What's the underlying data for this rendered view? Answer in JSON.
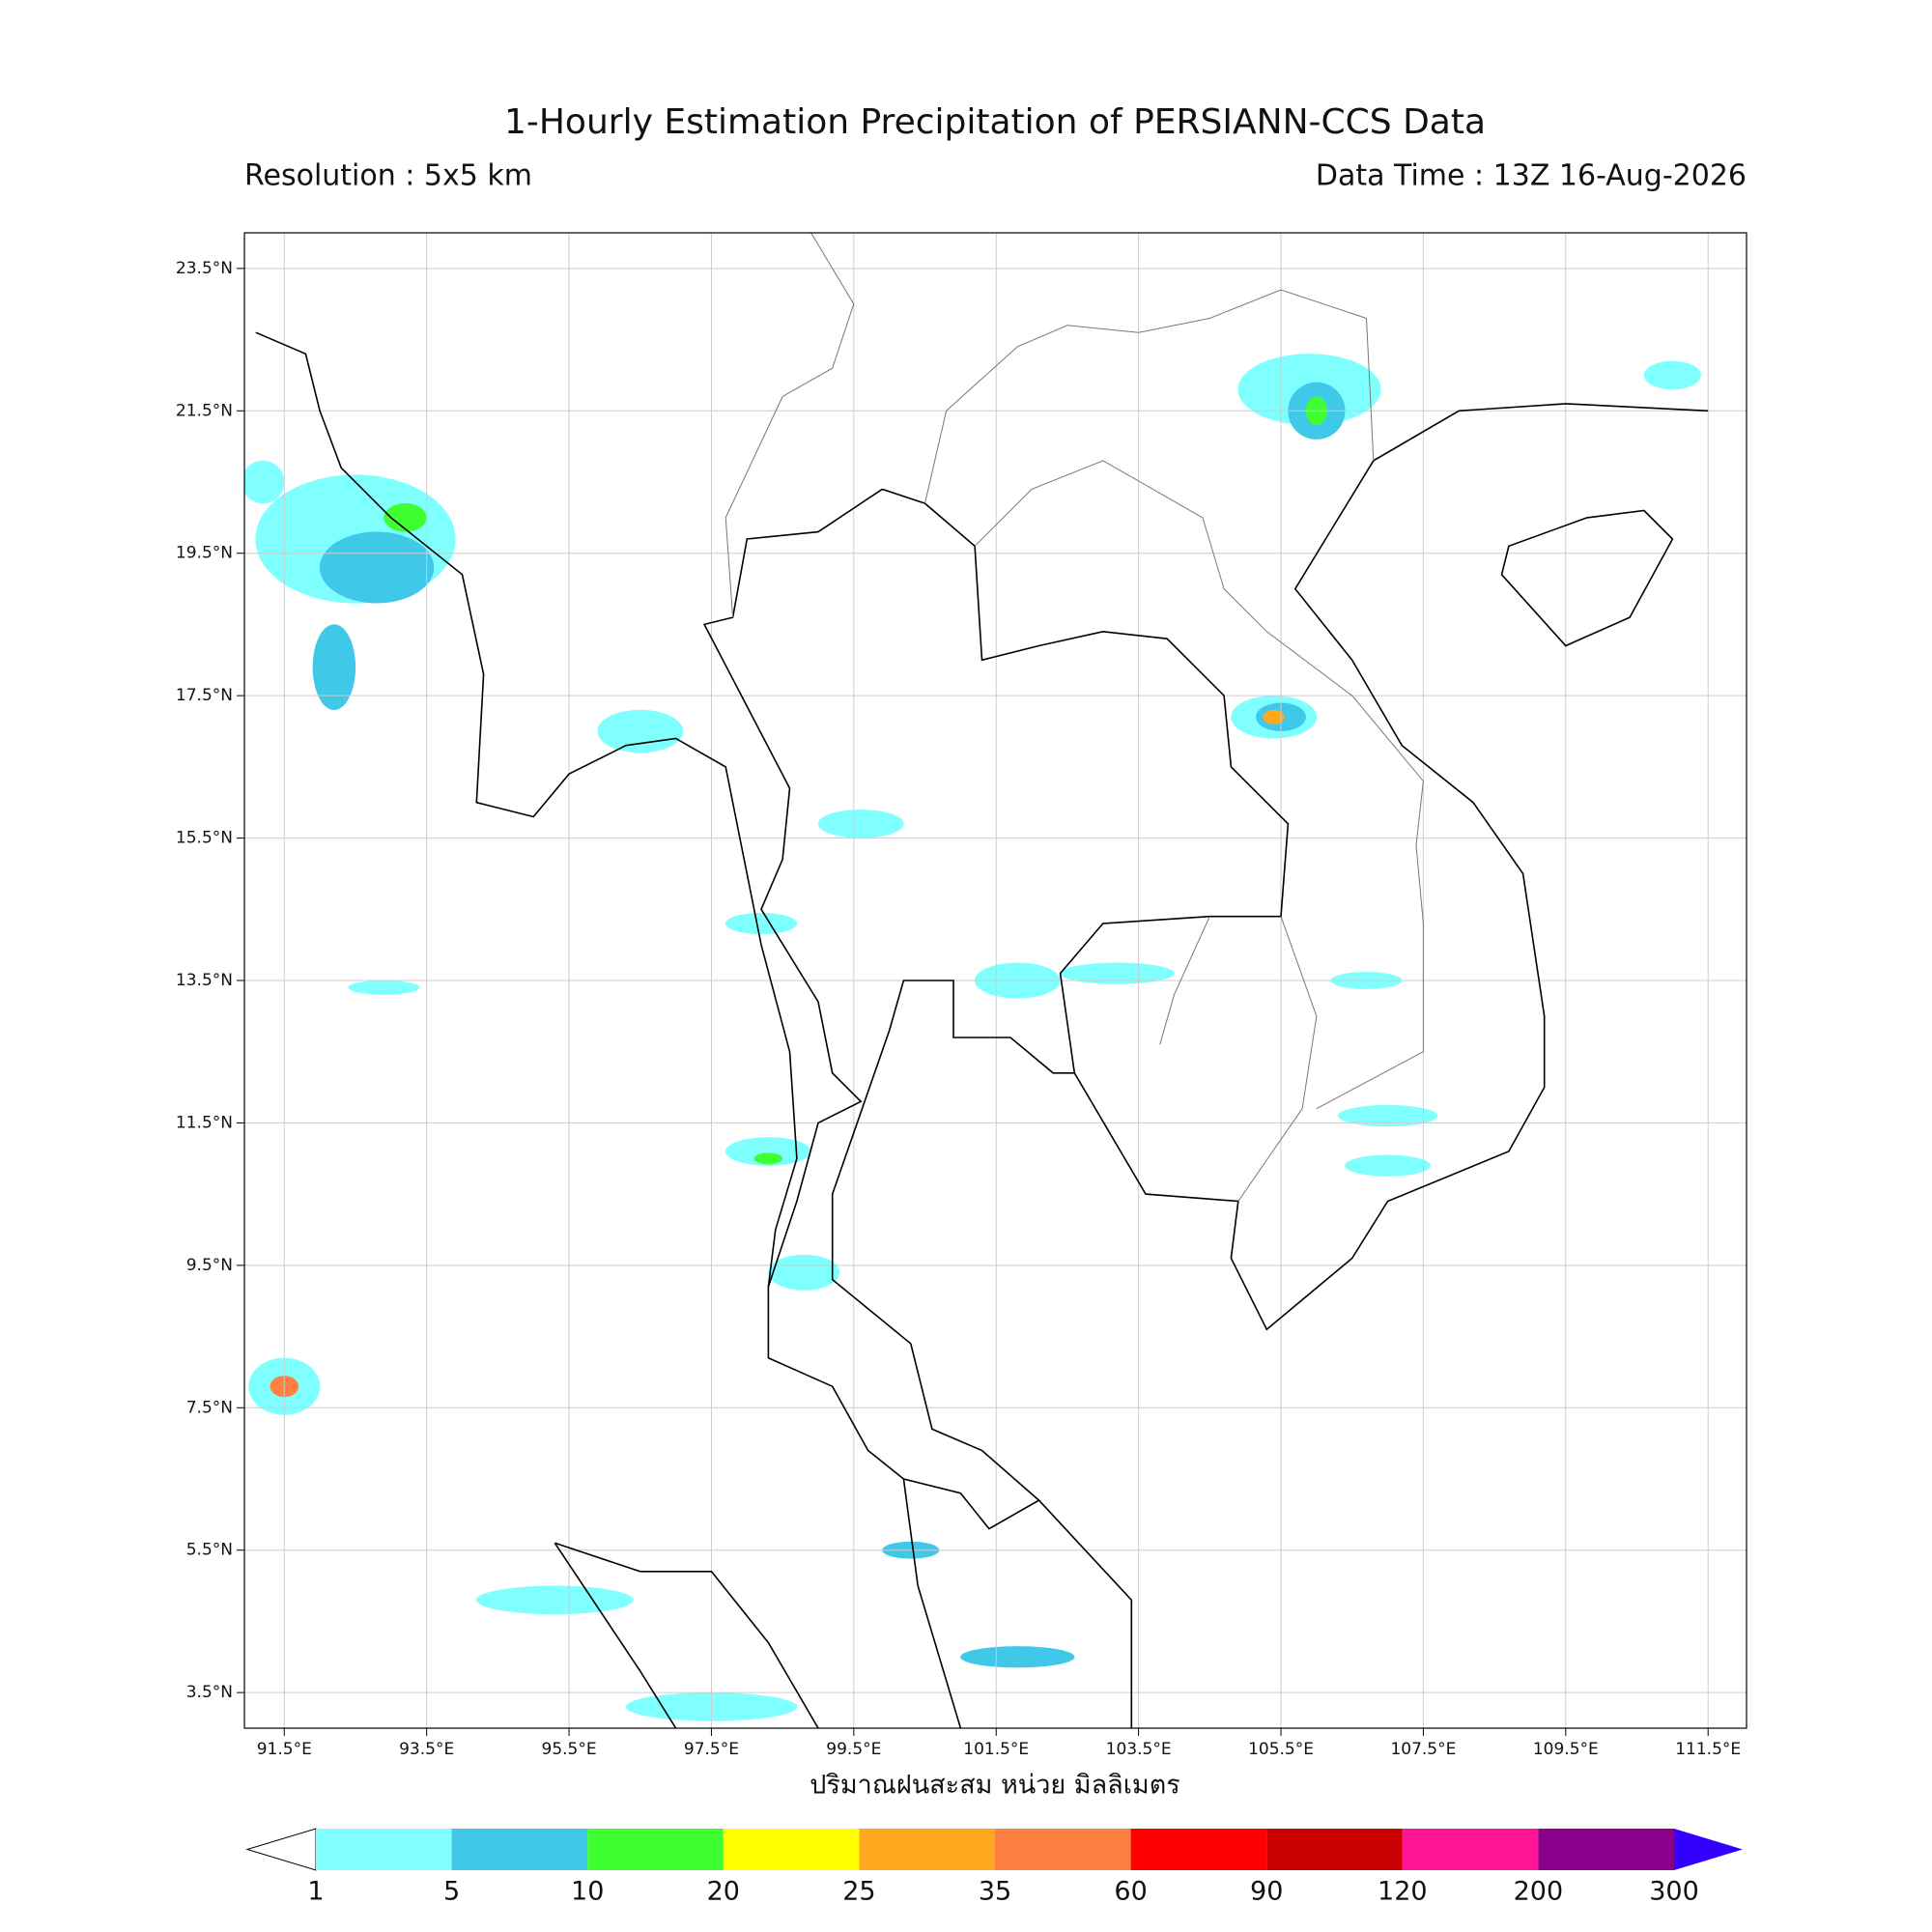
{
  "header": {
    "title": "1-Hourly Estimation Precipitation of PERSIANN-CCS Data",
    "resolution": "Resolution : 5x5 km",
    "data_time": "Data Time : 13Z 16-Aug-2026"
  },
  "map": {
    "xlim": [
      90.94,
      112.04
    ],
    "ylim": [
      3.0,
      24.0
    ],
    "grid": true,
    "lon_ticks": [
      {
        "value": 91.5,
        "label": "91.5°E"
      },
      {
        "value": 93.5,
        "label": "93.5°E"
      },
      {
        "value": 95.5,
        "label": "95.5°E"
      },
      {
        "value": 97.5,
        "label": "97.5°E"
      },
      {
        "value": 99.5,
        "label": "99.5°E"
      },
      {
        "value": 101.5,
        "label": "101.5°E"
      },
      {
        "value": 103.5,
        "label": "103.5°E"
      },
      {
        "value": 105.5,
        "label": "105.5°E"
      },
      {
        "value": 107.5,
        "label": "107.5°E"
      },
      {
        "value": 109.5,
        "label": "109.5°E"
      },
      {
        "value": 111.5,
        "label": "111.5°E"
      }
    ],
    "lat_ticks": [
      {
        "value": 3.5,
        "label": "3.5°N"
      },
      {
        "value": 5.5,
        "label": "5.5°N"
      },
      {
        "value": 7.5,
        "label": "7.5°N"
      },
      {
        "value": 9.5,
        "label": "9.5°N"
      },
      {
        "value": 11.5,
        "label": "11.5°N"
      },
      {
        "value": 13.5,
        "label": "13.5°N"
      },
      {
        "value": 15.5,
        "label": "15.5°N"
      },
      {
        "value": 17.5,
        "label": "17.5°N"
      },
      {
        "value": 19.5,
        "label": "19.5°N"
      },
      {
        "value": 21.5,
        "label": "21.5°N"
      },
      {
        "value": 23.5,
        "label": "23.5°N"
      }
    ]
  },
  "x_label": "ปริมาณฝนสะสม หน่วย มิลลิเมตร",
  "colorbar": {
    "levels": [
      1,
      5,
      10,
      20,
      25,
      35,
      60,
      90,
      120,
      200,
      300
    ],
    "colors": [
      "#80ffff",
      "#40c8e8",
      "#40ff30",
      "#ffff00",
      "#ffa820",
      "#ff8040",
      "#ff0000",
      "#c80000",
      "#ff1493",
      "#8b008b"
    ],
    "under_color": "#ffffff",
    "over_color": "#3300ff"
  }
}
